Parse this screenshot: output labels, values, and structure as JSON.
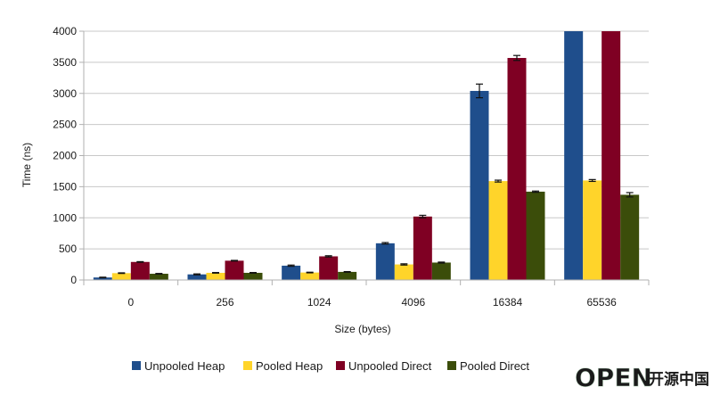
{
  "chart_data": {
    "type": "bar",
    "xlabel": "Size (bytes)",
    "ylabel": "Time (ns)",
    "ylim": [
      0,
      4000
    ],
    "yticks": [
      0,
      500,
      1000,
      1500,
      2000,
      2500,
      3000,
      3500,
      4000
    ],
    "categories": [
      "0",
      "256",
      "1024",
      "4096",
      "16384",
      "65536"
    ],
    "grid": "horizontal",
    "legend_position": "bottom",
    "series": [
      {
        "name": "Unpooled Heap",
        "color": "#1f4e8c",
        "values": [
          40,
          90,
          230,
          590,
          3040,
          4000
        ],
        "errors": [
          5,
          8,
          10,
          12,
          110,
          0
        ]
      },
      {
        "name": "Pooled Heap",
        "color": "#ffd42a",
        "values": [
          110,
          115,
          120,
          250,
          1590,
          1600
        ],
        "errors": [
          5,
          5,
          5,
          10,
          15,
          15
        ]
      },
      {
        "name": "Unpooled Direct",
        "color": "#7f0023",
        "values": [
          290,
          310,
          380,
          1020,
          3570,
          4000
        ],
        "errors": [
          5,
          5,
          10,
          20,
          40,
          0
        ]
      },
      {
        "name": "Pooled Direct",
        "color": "#3b4d0a",
        "values": [
          100,
          115,
          130,
          280,
          1420,
          1370
        ],
        "errors": [
          5,
          5,
          5,
          8,
          10,
          35
        ]
      }
    ]
  },
  "watermark": {
    "latin": "OPEN",
    "cjk": "开源中国"
  }
}
